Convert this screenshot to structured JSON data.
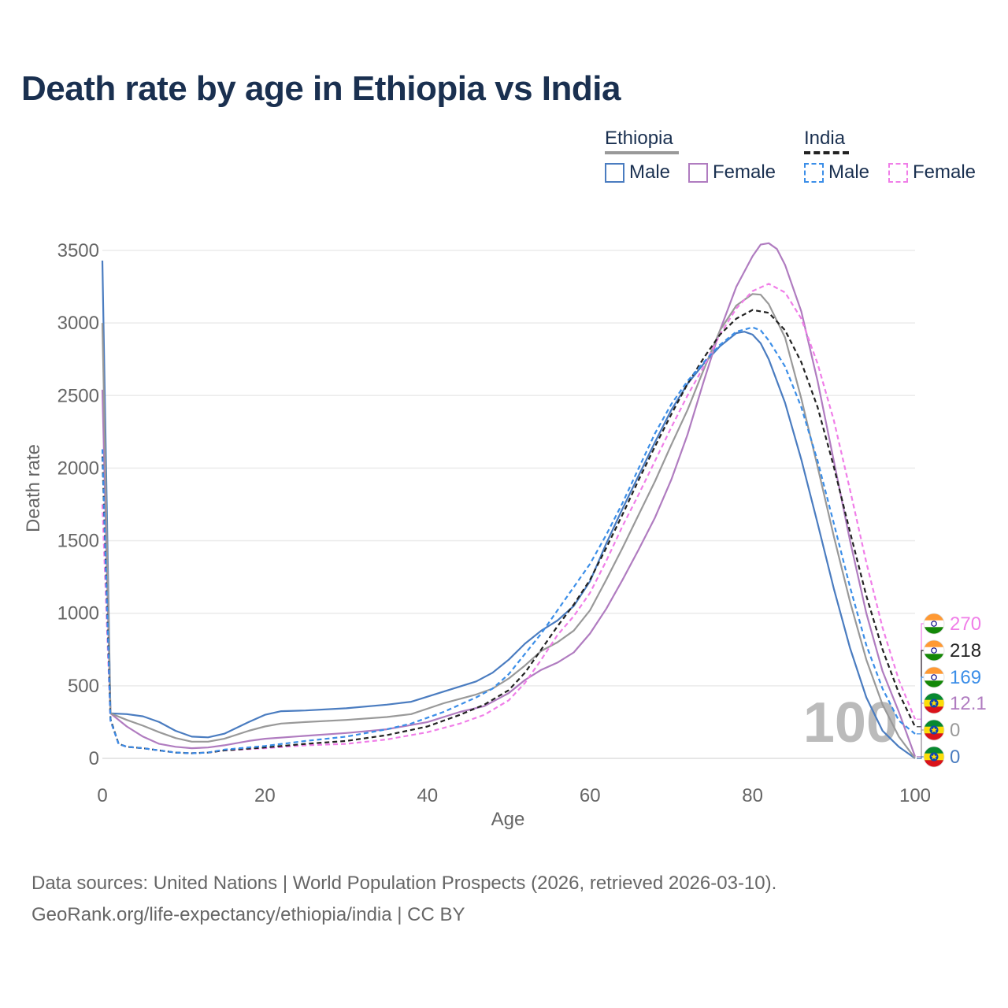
{
  "chart_data": {
    "type": "line",
    "title": "Death rate by age in Ethiopia vs India",
    "xlabel": "Age",
    "ylabel": "Death rate",
    "xlim": [
      0,
      100
    ],
    "ylim": [
      0,
      3500
    ],
    "xticks": [
      0,
      20,
      40,
      60,
      80,
      100
    ],
    "yticks": [
      0,
      500,
      1000,
      1500,
      2000,
      2500,
      3000,
      3500
    ],
    "watermark": "100",
    "legend": {
      "groups": [
        {
          "name": "Ethiopia",
          "color": "#999999",
          "dash": false
        },
        {
          "name": "India",
          "color": "#222222",
          "dash": true
        }
      ],
      "items": [
        {
          "label": "Male",
          "group": "Ethiopia",
          "color": "#4a7cc0",
          "dash": false
        },
        {
          "label": "Female",
          "group": "Ethiopia",
          "color": "#b07cc0",
          "dash": false
        },
        {
          "label": "Male",
          "group": "India",
          "color": "#3b8ee8",
          "dash": true
        },
        {
          "label": "Female",
          "group": "India",
          "color": "#f07ee8",
          "dash": true
        }
      ]
    },
    "series": [
      {
        "name": "Ethiopia Male",
        "color": "#4a7cc0",
        "dash": false,
        "end_label": "0",
        "flag": "ethiopia",
        "points": [
          [
            0,
            3430
          ],
          [
            1,
            310
          ],
          [
            3,
            305
          ],
          [
            5,
            290
          ],
          [
            7,
            250
          ],
          [
            9,
            190
          ],
          [
            11,
            150
          ],
          [
            13,
            145
          ],
          [
            15,
            170
          ],
          [
            18,
            250
          ],
          [
            20,
            300
          ],
          [
            22,
            325
          ],
          [
            25,
            330
          ],
          [
            30,
            345
          ],
          [
            35,
            370
          ],
          [
            38,
            390
          ],
          [
            42,
            460
          ],
          [
            46,
            530
          ],
          [
            48,
            590
          ],
          [
            50,
            680
          ],
          [
            52,
            790
          ],
          [
            54,
            880
          ],
          [
            56,
            950
          ],
          [
            58,
            1050
          ],
          [
            60,
            1220
          ],
          [
            62,
            1480
          ],
          [
            64,
            1720
          ],
          [
            66,
            1950
          ],
          [
            68,
            2180
          ],
          [
            70,
            2400
          ],
          [
            72,
            2580
          ],
          [
            74,
            2720
          ],
          [
            76,
            2840
          ],
          [
            78,
            2930
          ],
          [
            79,
            2940
          ],
          [
            80,
            2920
          ],
          [
            81,
            2860
          ],
          [
            82,
            2750
          ],
          [
            84,
            2450
          ],
          [
            86,
            2060
          ],
          [
            88,
            1620
          ],
          [
            90,
            1170
          ],
          [
            92,
            760
          ],
          [
            94,
            420
          ],
          [
            96,
            190
          ],
          [
            98,
            80
          ],
          [
            100,
            0
          ]
        ]
      },
      {
        "name": "Ethiopia Female",
        "color": "#b07cc0",
        "dash": false,
        "end_label": "12.1",
        "flag": "ethiopia",
        "points": [
          [
            0,
            2540
          ],
          [
            1,
            310
          ],
          [
            3,
            220
          ],
          [
            5,
            150
          ],
          [
            7,
            100
          ],
          [
            9,
            80
          ],
          [
            11,
            70
          ],
          [
            13,
            75
          ],
          [
            15,
            90
          ],
          [
            18,
            120
          ],
          [
            20,
            135
          ],
          [
            25,
            155
          ],
          [
            30,
            175
          ],
          [
            35,
            200
          ],
          [
            40,
            250
          ],
          [
            44,
            320
          ],
          [
            47,
            360
          ],
          [
            50,
            450
          ],
          [
            52,
            540
          ],
          [
            54,
            610
          ],
          [
            56,
            660
          ],
          [
            58,
            730
          ],
          [
            60,
            860
          ],
          [
            62,
            1030
          ],
          [
            64,
            1230
          ],
          [
            66,
            1440
          ],
          [
            68,
            1660
          ],
          [
            70,
            1920
          ],
          [
            72,
            2230
          ],
          [
            74,
            2600
          ],
          [
            76,
            2950
          ],
          [
            78,
            3250
          ],
          [
            80,
            3460
          ],
          [
            81,
            3540
          ],
          [
            82,
            3550
          ],
          [
            83,
            3510
          ],
          [
            84,
            3400
          ],
          [
            86,
            3080
          ],
          [
            88,
            2600
          ],
          [
            90,
            2050
          ],
          [
            92,
            1500
          ],
          [
            94,
            1000
          ],
          [
            96,
            600
          ],
          [
            98,
            320
          ],
          [
            100,
            12.1
          ]
        ]
      },
      {
        "name": "Ethiopia Both",
        "color": "#999999",
        "dash": false,
        "end_label": "0",
        "flag": "ethiopia",
        "points": [
          [
            0,
            3000
          ],
          [
            1,
            310
          ],
          [
            3,
            265
          ],
          [
            5,
            225
          ],
          [
            7,
            180
          ],
          [
            9,
            140
          ],
          [
            11,
            115
          ],
          [
            13,
            115
          ],
          [
            15,
            135
          ],
          [
            18,
            190
          ],
          [
            20,
            220
          ],
          [
            22,
            240
          ],
          [
            25,
            250
          ],
          [
            30,
            265
          ],
          [
            35,
            285
          ],
          [
            38,
            305
          ],
          [
            42,
            380
          ],
          [
            46,
            440
          ],
          [
            48,
            480
          ],
          [
            50,
            550
          ],
          [
            52,
            640
          ],
          [
            54,
            740
          ],
          [
            56,
            800
          ],
          [
            58,
            880
          ],
          [
            60,
            1020
          ],
          [
            62,
            1230
          ],
          [
            64,
            1450
          ],
          [
            66,
            1680
          ],
          [
            68,
            1910
          ],
          [
            70,
            2160
          ],
          [
            72,
            2400
          ],
          [
            74,
            2680
          ],
          [
            76,
            2950
          ],
          [
            78,
            3120
          ],
          [
            80,
            3200
          ],
          [
            81,
            3195
          ],
          [
            82,
            3130
          ],
          [
            84,
            2900
          ],
          [
            86,
            2480
          ],
          [
            88,
            2010
          ],
          [
            90,
            1530
          ],
          [
            92,
            1080
          ],
          [
            94,
            680
          ],
          [
            96,
            370
          ],
          [
            98,
            150
          ],
          [
            100,
            0
          ]
        ]
      },
      {
        "name": "India Female",
        "color": "#f07ee8",
        "dash": true,
        "end_label": "270",
        "flag": "india",
        "points": [
          [
            0,
            1750
          ],
          [
            1,
            260
          ],
          [
            2,
            100
          ],
          [
            3,
            80
          ],
          [
            5,
            70
          ],
          [
            7,
            55
          ],
          [
            9,
            40
          ],
          [
            11,
            35
          ],
          [
            13,
            40
          ],
          [
            15,
            55
          ],
          [
            20,
            70
          ],
          [
            25,
            90
          ],
          [
            30,
            100
          ],
          [
            35,
            130
          ],
          [
            40,
            180
          ],
          [
            44,
            240
          ],
          [
            47,
            300
          ],
          [
            50,
            400
          ],
          [
            52,
            520
          ],
          [
            54,
            680
          ],
          [
            56,
            850
          ],
          [
            58,
            980
          ],
          [
            60,
            1140
          ],
          [
            62,
            1360
          ],
          [
            64,
            1600
          ],
          [
            66,
            1820
          ],
          [
            68,
            2050
          ],
          [
            70,
            2280
          ],
          [
            72,
            2500
          ],
          [
            74,
            2700
          ],
          [
            76,
            2920
          ],
          [
            78,
            3100
          ],
          [
            80,
            3220
          ],
          [
            82,
            3270
          ],
          [
            84,
            3210
          ],
          [
            86,
            3030
          ],
          [
            88,
            2720
          ],
          [
            90,
            2330
          ],
          [
            92,
            1850
          ],
          [
            94,
            1350
          ],
          [
            96,
            900
          ],
          [
            98,
            540
          ],
          [
            100,
            270
          ]
        ]
      },
      {
        "name": "India Both",
        "color": "#222222",
        "dash": true,
        "end_label": "218",
        "flag": "india",
        "points": [
          [
            0,
            2080
          ],
          [
            1,
            270
          ],
          [
            2,
            100
          ],
          [
            3,
            80
          ],
          [
            5,
            70
          ],
          [
            7,
            55
          ],
          [
            9,
            40
          ],
          [
            11,
            35
          ],
          [
            13,
            40
          ],
          [
            15,
            55
          ],
          [
            20,
            75
          ],
          [
            25,
            100
          ],
          [
            30,
            120
          ],
          [
            35,
            160
          ],
          [
            40,
            220
          ],
          [
            44,
            300
          ],
          [
            47,
            370
          ],
          [
            50,
            470
          ],
          [
            52,
            590
          ],
          [
            54,
            750
          ],
          [
            56,
            910
          ],
          [
            58,
            1060
          ],
          [
            60,
            1230
          ],
          [
            62,
            1450
          ],
          [
            64,
            1680
          ],
          [
            66,
            1920
          ],
          [
            68,
            2150
          ],
          [
            70,
            2370
          ],
          [
            72,
            2580
          ],
          [
            74,
            2760
          ],
          [
            76,
            2920
          ],
          [
            78,
            3030
          ],
          [
            80,
            3090
          ],
          [
            82,
            3070
          ],
          [
            84,
            2950
          ],
          [
            86,
            2730
          ],
          [
            88,
            2420
          ],
          [
            90,
            2010
          ],
          [
            92,
            1560
          ],
          [
            94,
            1120
          ],
          [
            96,
            750
          ],
          [
            98,
            450
          ],
          [
            100,
            218
          ]
        ]
      },
      {
        "name": "India Male",
        "color": "#3b8ee8",
        "dash": true,
        "end_label": "169",
        "flag": "india",
        "points": [
          [
            0,
            2130
          ],
          [
            1,
            260
          ],
          [
            2,
            100
          ],
          [
            3,
            80
          ],
          [
            5,
            70
          ],
          [
            7,
            55
          ],
          [
            9,
            40
          ],
          [
            11,
            35
          ],
          [
            13,
            40
          ],
          [
            15,
            60
          ],
          [
            20,
            85
          ],
          [
            25,
            120
          ],
          [
            30,
            150
          ],
          [
            35,
            200
          ],
          [
            38,
            240
          ],
          [
            42,
            320
          ],
          [
            46,
            420
          ],
          [
            48,
            480
          ],
          [
            50,
            580
          ],
          [
            52,
            720
          ],
          [
            54,
            860
          ],
          [
            56,
            1020
          ],
          [
            58,
            1180
          ],
          [
            60,
            1340
          ],
          [
            62,
            1540
          ],
          [
            64,
            1760
          ],
          [
            66,
            2000
          ],
          [
            68,
            2240
          ],
          [
            70,
            2440
          ],
          [
            72,
            2600
          ],
          [
            74,
            2730
          ],
          [
            76,
            2850
          ],
          [
            78,
            2940
          ],
          [
            80,
            2970
          ],
          [
            81,
            2950
          ],
          [
            82,
            2880
          ],
          [
            84,
            2700
          ],
          [
            86,
            2420
          ],
          [
            88,
            2050
          ],
          [
            90,
            1620
          ],
          [
            92,
            1180
          ],
          [
            94,
            780
          ],
          [
            96,
            480
          ],
          [
            98,
            260
          ],
          [
            100,
            169
          ]
        ]
      }
    ]
  },
  "footer": {
    "line1": "Data sources: United Nations | World Population Prospects (2026, retrieved 2026-03-10).",
    "line2": "GeoRank.org/life-expectancy/ethiopia/india | CC BY"
  }
}
